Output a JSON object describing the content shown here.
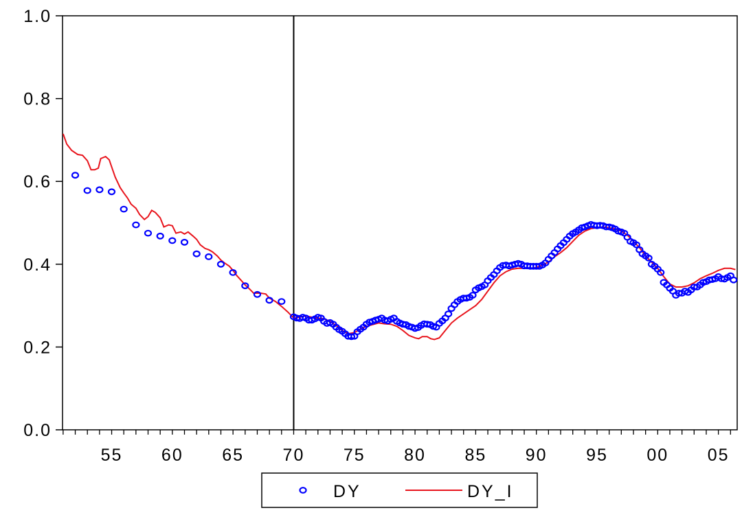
{
  "chart_data": {
    "type": "scatter",
    "title": "",
    "xlabel": "",
    "ylabel": "",
    "xlim": [
      1951.0,
      2006.6
    ],
    "ylim": [
      0.0,
      1.0
    ],
    "grid": false,
    "legend_position": "bottom-center",
    "x_tick_labels": [
      "55",
      "60",
      "65",
      "70",
      "75",
      "80",
      "85",
      "90",
      "95",
      "00",
      "05"
    ],
    "x_tick_values": [
      1955,
      1960,
      1965,
      1970,
      1975,
      1980,
      1985,
      1990,
      1995,
      2000,
      2005
    ],
    "y_tick_labels": [
      "0.0",
      "0.2",
      "0.4",
      "0.6",
      "0.8",
      "1.0"
    ],
    "y_tick_values": [
      0.0,
      0.2,
      0.4,
      0.6,
      0.8,
      1.0
    ],
    "vertical_line_x": 1970,
    "series": [
      {
        "name": "DY",
        "style": "circles",
        "color": "#0000ff",
        "points": [
          [
            1952,
            0.615
          ],
          [
            1953,
            0.578
          ],
          [
            1954,
            0.58
          ],
          [
            1955,
            0.575
          ],
          [
            1956,
            0.533
          ],
          [
            1957,
            0.495
          ],
          [
            1958,
            0.475
          ],
          [
            1959,
            0.468
          ],
          [
            1960,
            0.457
          ],
          [
            1961,
            0.453
          ],
          [
            1962,
            0.425
          ],
          [
            1963,
            0.418
          ],
          [
            1964,
            0.4
          ],
          [
            1965,
            0.38
          ],
          [
            1966,
            0.348
          ],
          [
            1967,
            0.327
          ],
          [
            1968,
            0.313
          ],
          [
            1969,
            0.31
          ],
          [
            1970.0,
            0.273
          ],
          [
            1970.25,
            0.27
          ],
          [
            1970.5,
            0.269
          ],
          [
            1970.75,
            0.272
          ],
          [
            1971.0,
            0.27
          ],
          [
            1971.25,
            0.265
          ],
          [
            1971.5,
            0.265
          ],
          [
            1971.75,
            0.268
          ],
          [
            1972.0,
            0.272
          ],
          [
            1972.25,
            0.27
          ],
          [
            1972.5,
            0.262
          ],
          [
            1972.75,
            0.257
          ],
          [
            1973.0,
            0.259
          ],
          [
            1973.25,
            0.255
          ],
          [
            1973.5,
            0.248
          ],
          [
            1973.75,
            0.242
          ],
          [
            1974.0,
            0.238
          ],
          [
            1974.25,
            0.232
          ],
          [
            1974.5,
            0.226
          ],
          [
            1974.75,
            0.225
          ],
          [
            1975.0,
            0.226
          ],
          [
            1975.25,
            0.237
          ],
          [
            1975.5,
            0.243
          ],
          [
            1975.75,
            0.248
          ],
          [
            1976.0,
            0.255
          ],
          [
            1976.25,
            0.26
          ],
          [
            1976.5,
            0.262
          ],
          [
            1976.75,
            0.265
          ],
          [
            1977.0,
            0.267
          ],
          [
            1977.25,
            0.27
          ],
          [
            1977.5,
            0.265
          ],
          [
            1977.75,
            0.263
          ],
          [
            1978.0,
            0.267
          ],
          [
            1978.25,
            0.27
          ],
          [
            1978.5,
            0.262
          ],
          [
            1978.75,
            0.258
          ],
          [
            1979.0,
            0.255
          ],
          [
            1979.25,
            0.254
          ],
          [
            1979.5,
            0.25
          ],
          [
            1979.75,
            0.248
          ],
          [
            1980.0,
            0.245
          ],
          [
            1980.25,
            0.247
          ],
          [
            1980.5,
            0.252
          ],
          [
            1980.75,
            0.256
          ],
          [
            1981.0,
            0.255
          ],
          [
            1981.25,
            0.254
          ],
          [
            1981.5,
            0.25
          ],
          [
            1981.75,
            0.248
          ],
          [
            1982.0,
            0.257
          ],
          [
            1982.25,
            0.263
          ],
          [
            1982.5,
            0.27
          ],
          [
            1982.75,
            0.28
          ],
          [
            1983.0,
            0.293
          ],
          [
            1983.25,
            0.302
          ],
          [
            1983.5,
            0.31
          ],
          [
            1983.75,
            0.315
          ],
          [
            1984.0,
            0.318
          ],
          [
            1984.25,
            0.318
          ],
          [
            1984.5,
            0.32
          ],
          [
            1984.75,
            0.325
          ],
          [
            1985.0,
            0.338
          ],
          [
            1985.25,
            0.343
          ],
          [
            1985.5,
            0.346
          ],
          [
            1985.75,
            0.35
          ],
          [
            1986.0,
            0.36
          ],
          [
            1986.25,
            0.368
          ],
          [
            1986.5,
            0.375
          ],
          [
            1986.75,
            0.384
          ],
          [
            1987.0,
            0.392
          ],
          [
            1987.25,
            0.397
          ],
          [
            1987.5,
            0.398
          ],
          [
            1987.75,
            0.396
          ],
          [
            1988.0,
            0.398
          ],
          [
            1988.25,
            0.4
          ],
          [
            1988.5,
            0.402
          ],
          [
            1988.75,
            0.4
          ],
          [
            1989.0,
            0.396
          ],
          [
            1989.25,
            0.396
          ],
          [
            1989.5,
            0.395
          ],
          [
            1989.75,
            0.395
          ],
          [
            1990.0,
            0.395
          ],
          [
            1990.25,
            0.395
          ],
          [
            1990.5,
            0.398
          ],
          [
            1990.75,
            0.403
          ],
          [
            1991.0,
            0.412
          ],
          [
            1991.25,
            0.42
          ],
          [
            1991.5,
            0.428
          ],
          [
            1991.75,
            0.437
          ],
          [
            1992.0,
            0.445
          ],
          [
            1992.25,
            0.452
          ],
          [
            1992.5,
            0.46
          ],
          [
            1992.75,
            0.468
          ],
          [
            1993.0,
            0.474
          ],
          [
            1993.25,
            0.478
          ],
          [
            1993.5,
            0.483
          ],
          [
            1993.75,
            0.488
          ],
          [
            1994.0,
            0.49
          ],
          [
            1994.25,
            0.493
          ],
          [
            1994.5,
            0.496
          ],
          [
            1994.75,
            0.494
          ],
          [
            1995.0,
            0.493
          ],
          [
            1995.25,
            0.494
          ],
          [
            1995.5,
            0.493
          ],
          [
            1995.75,
            0.49
          ],
          [
            1996.0,
            0.49
          ],
          [
            1996.25,
            0.488
          ],
          [
            1996.5,
            0.485
          ],
          [
            1996.75,
            0.48
          ],
          [
            1997.0,
            0.478
          ],
          [
            1997.25,
            0.475
          ],
          [
            1997.5,
            0.465
          ],
          [
            1997.75,
            0.455
          ],
          [
            1998.0,
            0.452
          ],
          [
            1998.25,
            0.447
          ],
          [
            1998.5,
            0.435
          ],
          [
            1998.75,
            0.425
          ],
          [
            1999.0,
            0.42
          ],
          [
            1999.25,
            0.415
          ],
          [
            1999.5,
            0.4
          ],
          [
            1999.75,
            0.395
          ],
          [
            2000.0,
            0.388
          ],
          [
            2000.25,
            0.38
          ],
          [
            2000.5,
            0.356
          ],
          [
            2000.75,
            0.35
          ],
          [
            2001.0,
            0.342
          ],
          [
            2001.25,
            0.335
          ],
          [
            2001.5,
            0.325
          ],
          [
            2001.75,
            0.33
          ],
          [
            2002.0,
            0.33
          ],
          [
            2002.25,
            0.335
          ],
          [
            2002.5,
            0.332
          ],
          [
            2002.75,
            0.338
          ],
          [
            2003.0,
            0.345
          ],
          [
            2003.25,
            0.345
          ],
          [
            2003.5,
            0.35
          ],
          [
            2003.75,
            0.356
          ],
          [
            2004.0,
            0.358
          ],
          [
            2004.25,
            0.362
          ],
          [
            2004.5,
            0.363
          ],
          [
            2004.75,
            0.365
          ],
          [
            2005.0,
            0.37
          ],
          [
            2005.25,
            0.365
          ],
          [
            2005.5,
            0.364
          ],
          [
            2005.75,
            0.368
          ],
          [
            2006.0,
            0.372
          ],
          [
            2006.25,
            0.362
          ]
        ]
      },
      {
        "name": "DY_I",
        "style": "line",
        "color": "#e8141c",
        "points": [
          [
            1951.0,
            0.715
          ],
          [
            1951.3,
            0.69
          ],
          [
            1951.7,
            0.675
          ],
          [
            1952.2,
            0.665
          ],
          [
            1952.6,
            0.663
          ],
          [
            1953.0,
            0.65
          ],
          [
            1953.3,
            0.628
          ],
          [
            1953.6,
            0.628
          ],
          [
            1953.9,
            0.632
          ],
          [
            1954.1,
            0.655
          ],
          [
            1954.5,
            0.66
          ],
          [
            1954.8,
            0.652
          ],
          [
            1955.0,
            0.635
          ],
          [
            1955.3,
            0.61
          ],
          [
            1955.7,
            0.585
          ],
          [
            1956.0,
            0.572
          ],
          [
            1956.3,
            0.56
          ],
          [
            1956.6,
            0.545
          ],
          [
            1957.0,
            0.535
          ],
          [
            1957.3,
            0.52
          ],
          [
            1957.7,
            0.508
          ],
          [
            1958.0,
            0.515
          ],
          [
            1958.3,
            0.53
          ],
          [
            1958.6,
            0.525
          ],
          [
            1959.0,
            0.512
          ],
          [
            1959.3,
            0.49
          ],
          [
            1959.7,
            0.495
          ],
          [
            1960.0,
            0.493
          ],
          [
            1960.3,
            0.475
          ],
          [
            1960.7,
            0.478
          ],
          [
            1961.0,
            0.473
          ],
          [
            1961.3,
            0.478
          ],
          [
            1961.7,
            0.468
          ],
          [
            1962.0,
            0.46
          ],
          [
            1962.3,
            0.447
          ],
          [
            1962.7,
            0.438
          ],
          [
            1963.0,
            0.435
          ],
          [
            1963.3,
            0.43
          ],
          [
            1963.7,
            0.42
          ],
          [
            1964.0,
            0.41
          ],
          [
            1964.3,
            0.403
          ],
          [
            1964.7,
            0.395
          ],
          [
            1965.0,
            0.385
          ],
          [
            1965.3,
            0.373
          ],
          [
            1965.7,
            0.36
          ],
          [
            1966.0,
            0.35
          ],
          [
            1966.3,
            0.342
          ],
          [
            1966.7,
            0.33
          ],
          [
            1967.0,
            0.33
          ],
          [
            1967.3,
            0.33
          ],
          [
            1967.7,
            0.328
          ],
          [
            1968.0,
            0.318
          ],
          [
            1968.5,
            0.31
          ],
          [
            1969.0,
            0.298
          ],
          [
            1969.5,
            0.285
          ],
          [
            1970.0,
            0.27
          ],
          [
            1970.5,
            0.272
          ],
          [
            1971.0,
            0.275
          ],
          [
            1971.5,
            0.272
          ],
          [
            1972.0,
            0.27
          ],
          [
            1972.5,
            0.268
          ],
          [
            1973.0,
            0.262
          ],
          [
            1973.5,
            0.252
          ],
          [
            1974.0,
            0.24
          ],
          [
            1974.5,
            0.232
          ],
          [
            1975.0,
            0.235
          ],
          [
            1975.5,
            0.243
          ],
          [
            1976.0,
            0.25
          ],
          [
            1976.5,
            0.254
          ],
          [
            1977.0,
            0.258
          ],
          [
            1977.5,
            0.256
          ],
          [
            1978.0,
            0.255
          ],
          [
            1978.5,
            0.25
          ],
          [
            1979.0,
            0.24
          ],
          [
            1979.5,
            0.228
          ],
          [
            1980.0,
            0.222
          ],
          [
            1980.3,
            0.22
          ],
          [
            1980.6,
            0.225
          ],
          [
            1981.0,
            0.225
          ],
          [
            1981.3,
            0.22
          ],
          [
            1981.6,
            0.218
          ],
          [
            1982.0,
            0.222
          ],
          [
            1982.5,
            0.24
          ],
          [
            1983.0,
            0.258
          ],
          [
            1983.5,
            0.27
          ],
          [
            1984.0,
            0.28
          ],
          [
            1984.5,
            0.29
          ],
          [
            1985.0,
            0.3
          ],
          [
            1985.5,
            0.315
          ],
          [
            1986.0,
            0.335
          ],
          [
            1986.5,
            0.355
          ],
          [
            1987.0,
            0.372
          ],
          [
            1987.5,
            0.382
          ],
          [
            1988.0,
            0.388
          ],
          [
            1988.5,
            0.39
          ],
          [
            1989.0,
            0.39
          ],
          [
            1989.5,
            0.39
          ],
          [
            1990.0,
            0.392
          ],
          [
            1990.5,
            0.398
          ],
          [
            1991.0,
            0.405
          ],
          [
            1991.5,
            0.418
          ],
          [
            1992.0,
            0.428
          ],
          [
            1992.5,
            0.44
          ],
          [
            1993.0,
            0.455
          ],
          [
            1993.5,
            0.47
          ],
          [
            1994.0,
            0.48
          ],
          [
            1994.5,
            0.486
          ],
          [
            1995.0,
            0.488
          ],
          [
            1995.5,
            0.49
          ],
          [
            1996.0,
            0.488
          ],
          [
            1996.5,
            0.485
          ],
          [
            1997.0,
            0.48
          ],
          [
            1997.5,
            0.47
          ],
          [
            1998.0,
            0.455
          ],
          [
            1998.5,
            0.44
          ],
          [
            1999.0,
            0.42
          ],
          [
            1999.5,
            0.405
          ],
          [
            2000.0,
            0.39
          ],
          [
            2000.5,
            0.37
          ],
          [
            2001.0,
            0.352
          ],
          [
            2001.5,
            0.345
          ],
          [
            2002.0,
            0.345
          ],
          [
            2002.5,
            0.348
          ],
          [
            2003.0,
            0.355
          ],
          [
            2003.5,
            0.365
          ],
          [
            2004.0,
            0.372
          ],
          [
            2004.5,
            0.378
          ],
          [
            2005.0,
            0.385
          ],
          [
            2005.5,
            0.39
          ],
          [
            2006.0,
            0.39
          ],
          [
            2006.4,
            0.387
          ]
        ]
      }
    ]
  }
}
